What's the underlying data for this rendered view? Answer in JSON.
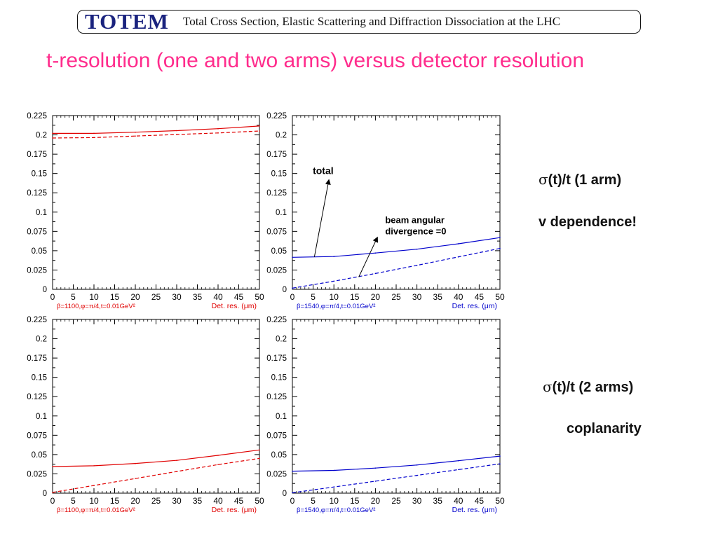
{
  "header": {
    "logo": "TOTEM",
    "title": "Total Cross Section, Elastic Scattering and Diffraction Dissociation at the LHC"
  },
  "slide_title": "t-resolution (one and two arms) versus detector resolution",
  "colors": {
    "red": "#e00000",
    "blue": "#0000cc",
    "title_pink": "#ff2c8c",
    "logo_navy": "#1a237e"
  },
  "labels": {
    "one_arm_sigma": "σ",
    "one_arm": "(t)/t  (1 arm)",
    "one_arm_note": "v dependence!",
    "two_arms_sigma": "σ",
    "two_arms": "(t)/t  (2 arms)",
    "two_arms_note": "coplanarity"
  },
  "chart_data": [
    {
      "type": "line",
      "xlim": [
        0,
        50
      ],
      "ylim": [
        0,
        0.225
      ],
      "x_ticks": [
        "0",
        "5",
        "10",
        "15",
        "20",
        "25",
        "30",
        "35",
        "40",
        "45",
        "50"
      ],
      "y_ticks": [
        "0",
        "0.025",
        "0.05",
        "0.075",
        "0.1",
        "0.125",
        "0.15",
        "0.175",
        "0.2",
        "0.225"
      ],
      "xlabel_params": "β=1100,φ=π/4,t=0.01GeV²",
      "xlabel": "Det. res. (μm)",
      "color": "#e00000",
      "series": [
        {
          "style": "solid",
          "x": [
            0,
            10,
            20,
            30,
            40,
            50
          ],
          "y": [
            0.202,
            0.202,
            0.2035,
            0.2055,
            0.208,
            0.2115
          ]
        },
        {
          "style": "dashed",
          "x": [
            0,
            10,
            20,
            30,
            40,
            50
          ],
          "y": [
            0.196,
            0.1965,
            0.1985,
            0.2005,
            0.2025,
            0.205
          ]
        }
      ],
      "annotations": []
    },
    {
      "type": "line",
      "xlim": [
        0,
        50
      ],
      "ylim": [
        0,
        0.225
      ],
      "x_ticks": [
        "0",
        "5",
        "10",
        "15",
        "20",
        "25",
        "30",
        "35",
        "40",
        "45",
        "50"
      ],
      "y_ticks": [
        "0",
        "0.025",
        "0.05",
        "0.075",
        "0.1",
        "0.125",
        "0.15",
        "0.175",
        "0.2",
        "0.225"
      ],
      "xlabel_params": "β=1540,φ=π/4,t=0.01GeV²",
      "xlabel": "Det. res. (μm)",
      "color": "#0000cc",
      "series": [
        {
          "style": "solid",
          "x": [
            0,
            10,
            20,
            30,
            40,
            50
          ],
          "y": [
            0.0415,
            0.0425,
            0.047,
            0.052,
            0.059,
            0.067
          ]
        },
        {
          "style": "dashed",
          "x": [
            0,
            10,
            20,
            30,
            40,
            50
          ],
          "y": [
            0.0015,
            0.0105,
            0.0205,
            0.031,
            0.042,
            0.053
          ]
        }
      ],
      "annotations": [
        {
          "text": "total",
          "tip": [
            8.8,
            0.142
          ],
          "tail": [
            5.3,
            0.042
          ]
        },
        {
          "text": "beam angular",
          "text2": "divergence =0",
          "tip": [
            20.5,
            0.0675
          ],
          "tail": [
            16,
            0.016
          ]
        }
      ]
    },
    {
      "type": "line",
      "xlim": [
        0,
        50
      ],
      "ylim": [
        0,
        0.225
      ],
      "x_ticks": [
        "0",
        "5",
        "10",
        "15",
        "20",
        "25",
        "30",
        "35",
        "40",
        "45",
        "50"
      ],
      "y_ticks": [
        "0",
        "0.025",
        "0.05",
        "0.075",
        "0.1",
        "0.125",
        "0.15",
        "0.175",
        "0.2",
        "0.225"
      ],
      "xlabel_params": "β=1100,φ=π/4,t=0.01GeV²",
      "xlabel": "Det. res. (μm)",
      "color": "#e00000",
      "series": [
        {
          "style": "solid",
          "x": [
            0,
            10,
            20,
            30,
            40,
            50
          ],
          "y": [
            0.0345,
            0.0355,
            0.0385,
            0.0425,
            0.049,
            0.056
          ]
        },
        {
          "style": "dashed",
          "x": [
            0,
            10,
            20,
            30,
            40,
            50
          ],
          "y": [
            0.001,
            0.01,
            0.019,
            0.028,
            0.037,
            0.045
          ]
        }
      ],
      "annotations": []
    },
    {
      "type": "line",
      "xlim": [
        0,
        50
      ],
      "ylim": [
        0,
        0.225
      ],
      "x_ticks": [
        "0",
        "5",
        "10",
        "15",
        "20",
        "25",
        "30",
        "35",
        "40",
        "45",
        "50"
      ],
      "y_ticks": [
        "0",
        "0.025",
        "0.05",
        "0.075",
        "0.1",
        "0.125",
        "0.15",
        "0.175",
        "0.2",
        "0.225"
      ],
      "xlabel_params": "β=1540,φ=π/4,t=0.01GeV²",
      "xlabel": "Det. res. (μm)",
      "color": "#0000cc",
      "series": [
        {
          "style": "solid",
          "x": [
            0,
            10,
            20,
            30,
            40,
            50
          ],
          "y": [
            0.0285,
            0.0295,
            0.0325,
            0.0365,
            0.042,
            0.048
          ]
        },
        {
          "style": "dashed",
          "x": [
            0,
            10,
            20,
            30,
            40,
            50
          ],
          "y": [
            0.0005,
            0.008,
            0.0155,
            0.023,
            0.0305,
            0.038
          ]
        }
      ],
      "annotations": []
    }
  ]
}
